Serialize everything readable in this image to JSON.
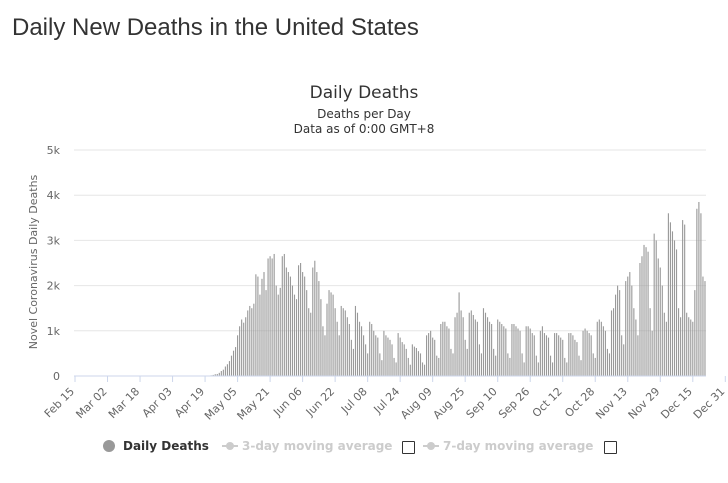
{
  "page": {
    "title": "Daily New Deaths in the United States"
  },
  "chart_data": {
    "type": "bar",
    "title": "Daily Deaths",
    "subtitle": [
      "Deaths per Day",
      "Data as of 0:00 GMT+8"
    ],
    "ylabel": "Novel Coronavirus Daily Deaths",
    "xlabel": "",
    "ylim": [
      0,
      5000
    ],
    "yticks": [
      0,
      1000,
      2000,
      3000,
      4000,
      5000
    ],
    "ytick_labels": [
      "0",
      "1k",
      "2k",
      "3k",
      "4k",
      "5k"
    ],
    "xtick_labels": [
      "Feb 15",
      "Mar 02",
      "Mar 18",
      "Apr 03",
      "Apr 19",
      "May 05",
      "May 21",
      "Jun 06",
      "Jun 22",
      "Jul 08",
      "Jul 24",
      "Aug 09",
      "Aug 25",
      "Sep 10",
      "Sep 26",
      "Oct 12",
      "Oct 28",
      "Nov 13",
      "Nov 29",
      "Dec 15",
      "Dec 31"
    ],
    "start_date": "Feb 15",
    "grid": true,
    "legend_position": "bottom",
    "bar_color": "#999999",
    "series": [
      {
        "name": "Daily Deaths",
        "values": [
          0,
          0,
          0,
          0,
          0,
          0,
          0,
          0,
          0,
          0,
          0,
          0,
          0,
          0,
          0,
          0,
          0,
          0,
          0,
          0,
          0,
          0,
          0,
          0,
          0,
          0,
          0,
          0,
          0,
          0,
          0,
          0,
          0,
          0,
          0,
          0,
          0,
          0,
          0,
          0,
          0,
          0,
          0,
          0,
          0,
          0,
          0,
          0,
          0,
          0,
          0,
          0,
          0,
          0,
          0,
          0,
          0,
          0,
          0,
          0,
          0,
          0,
          0,
          0,
          2,
          5,
          8,
          15,
          24,
          40,
          45,
          70,
          110,
          140,
          210,
          260,
          330,
          450,
          560,
          640,
          900,
          1100,
          1250,
          1180,
          1300,
          1450,
          1550,
          1500,
          1600,
          2250,
          2200,
          1800,
          2150,
          2300,
          1900,
          2600,
          2650,
          2600,
          2700,
          2000,
          1800,
          1950,
          2650,
          2700,
          2400,
          2300,
          2200,
          2000,
          1800,
          1700,
          2450,
          2500,
          2300,
          2200,
          1900,
          1500,
          1400,
          2400,
          2550,
          2300,
          2100,
          1700,
          1100,
          900,
          1600,
          1900,
          1850,
          1800,
          1500,
          1200,
          900,
          1550,
          1500,
          1450,
          1300,
          1150,
          800,
          600,
          1550,
          1400,
          1200,
          1100,
          900,
          700,
          500,
          1200,
          1150,
          1000,
          900,
          850,
          500,
          350,
          1000,
          900,
          850,
          800,
          700,
          400,
          300,
          950,
          850,
          750,
          700,
          600,
          400,
          250,
          700,
          650,
          620,
          550,
          500,
          300,
          250,
          900,
          950,
          1000,
          850,
          800,
          450,
          400,
          1150,
          1200,
          1200,
          1100,
          1050,
          600,
          500,
          1300,
          1400,
          1850,
          1450,
          1300,
          800,
          600,
          1400,
          1450,
          1350,
          1250,
          1200,
          700,
          500,
          1500,
          1400,
          1300,
          1200,
          1150,
          600,
          450,
          1250,
          1200,
          1150,
          1100,
          1050,
          500,
          400,
          1150,
          1150,
          1100,
          1050,
          1000,
          500,
          300,
          1100,
          1100,
          1050,
          950,
          900,
          450,
          300,
          1000,
          1100,
          950,
          900,
          850,
          450,
          300,
          950,
          950,
          900,
          850,
          800,
          400,
          300,
          950,
          950,
          900,
          800,
          750,
          450,
          350,
          1000,
          1050,
          1000,
          950,
          900,
          500,
          400,
          1200,
          1250,
          1200,
          1100,
          1000,
          600,
          500,
          1450,
          1500,
          1800,
          2000,
          1900,
          900,
          700,
          2100,
          2200,
          2300,
          2000,
          1500,
          1250,
          900,
          2500,
          2650,
          2900,
          2850,
          2750,
          1500,
          1000,
          3150,
          3000,
          2600,
          2400,
          2000,
          1400,
          1200,
          3600,
          3400,
          3200,
          3000,
          2800,
          1500,
          1300,
          3450,
          3350,
          1400,
          1300,
          1250,
          1200,
          1900,
          3700,
          3850,
          3600,
          2200,
          2100
        ]
      }
    ]
  },
  "legend": {
    "items": [
      {
        "label": "Daily Deaths"
      },
      {
        "label": "3-day moving average"
      },
      {
        "label": "7-day moving average"
      }
    ]
  }
}
